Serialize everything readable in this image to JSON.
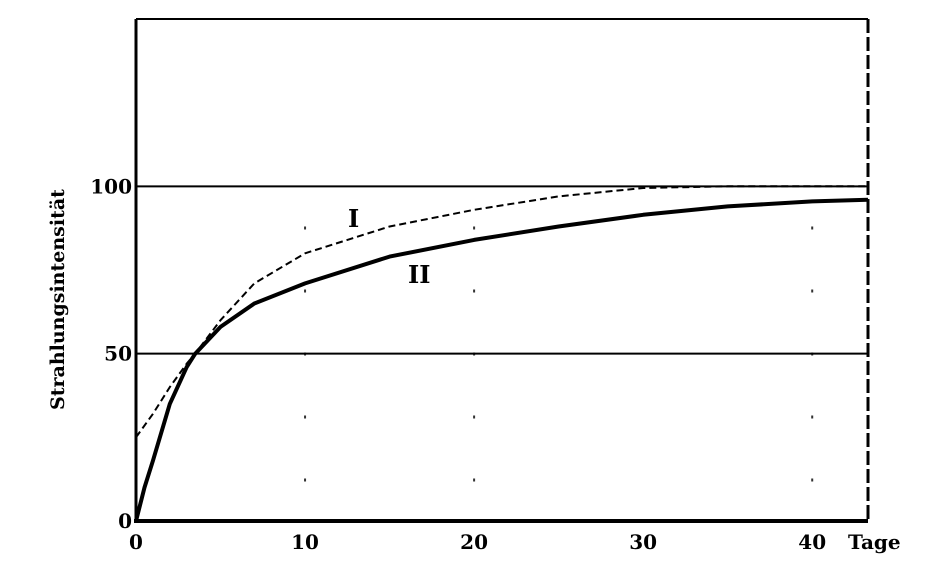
{
  "chart_data": {
    "type": "line",
    "title": "",
    "xlabel": "Tage",
    "ylabel": "Strahlungsintensität",
    "xlim": [
      0,
      43.3
    ],
    "ylim": [
      0,
      150
    ],
    "x_ticks": [
      "0",
      "10",
      "20",
      "30",
      "40"
    ],
    "y_ticks": [
      "0",
      "50",
      "100"
    ],
    "x_tick_values": [
      0,
      10,
      20,
      30,
      40
    ],
    "y_tick_values": [
      0,
      50,
      100
    ],
    "grid": "horizontal lines at 50 and 100",
    "series": [
      {
        "name": "I",
        "style": "dashed",
        "x": [
          0,
          1,
          2,
          3,
          3.5,
          5,
          7,
          10,
          15,
          20,
          25,
          30,
          35,
          40,
          43.3
        ],
        "y": [
          25,
          32,
          40,
          47,
          50,
          60,
          71,
          80,
          88,
          93,
          97,
          99.5,
          100,
          100,
          100
        ]
      },
      {
        "name": "II",
        "style": "solid",
        "x": [
          0,
          0.5,
          1,
          2,
          3,
          3.5,
          5,
          7,
          10,
          15,
          20,
          25,
          30,
          35,
          40,
          43.3
        ],
        "y": [
          0,
          10,
          18,
          35,
          46,
          50,
          58,
          65,
          71,
          79,
          84,
          88,
          91.5,
          94,
          95.5,
          96
        ]
      }
    ],
    "colors": {
      "line": "#000000",
      "background": "#ffffff"
    }
  }
}
